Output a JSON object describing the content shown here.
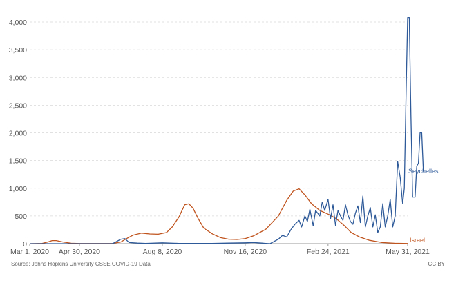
{
  "chart_data": {
    "type": "line",
    "y_ticks": [
      0,
      500,
      1000,
      1500,
      2000,
      2500,
      3000,
      3500,
      4000
    ],
    "y_tick_labels": [
      "0",
      "500",
      "1,000",
      "1,500",
      "2,000",
      "2,500",
      "3,000",
      "3,500",
      "4,000"
    ],
    "ylim": [
      0,
      4100
    ],
    "x_range_days": [
      0,
      456
    ],
    "x_ticks": [
      {
        "day": 0,
        "label": "Mar 1, 2020"
      },
      {
        "day": 60,
        "label": "Apr 30, 2020"
      },
      {
        "day": 160,
        "label": "Aug 8, 2020"
      },
      {
        "day": 260,
        "label": "Nov 16, 2020"
      },
      {
        "day": 360,
        "label": "Feb 24, 2021"
      },
      {
        "day": 456,
        "label": "May 31, 2021"
      }
    ],
    "grid": true,
    "series": [
      {
        "name": "Israel",
        "color": "#c0541e",
        "points": [
          [
            0,
            0
          ],
          [
            15,
            5
          ],
          [
            22,
            30
          ],
          [
            27,
            55
          ],
          [
            32,
            55
          ],
          [
            40,
            30
          ],
          [
            50,
            8
          ],
          [
            60,
            3
          ],
          [
            80,
            3
          ],
          [
            100,
            5
          ],
          [
            110,
            30
          ],
          [
            118,
            100
          ],
          [
            125,
            155
          ],
          [
            135,
            190
          ],
          [
            145,
            175
          ],
          [
            155,
            170
          ],
          [
            165,
            200
          ],
          [
            172,
            300
          ],
          [
            180,
            480
          ],
          [
            187,
            700
          ],
          [
            192,
            720
          ],
          [
            197,
            640
          ],
          [
            203,
            460
          ],
          [
            210,
            280
          ],
          [
            220,
            180
          ],
          [
            230,
            110
          ],
          [
            240,
            80
          ],
          [
            250,
            75
          ],
          [
            260,
            90
          ],
          [
            270,
            140
          ],
          [
            285,
            260
          ],
          [
            300,
            500
          ],
          [
            310,
            780
          ],
          [
            318,
            950
          ],
          [
            325,
            990
          ],
          [
            332,
            880
          ],
          [
            340,
            720
          ],
          [
            350,
            600
          ],
          [
            362,
            520
          ],
          [
            370,
            450
          ],
          [
            380,
            320
          ],
          [
            388,
            200
          ],
          [
            398,
            120
          ],
          [
            410,
            60
          ],
          [
            425,
            20
          ],
          [
            440,
            8
          ],
          [
            456,
            3
          ]
        ]
      },
      {
        "name": "Seychelles",
        "color": "#2e5a99",
        "points": [
          [
            0,
            0
          ],
          [
            100,
            0
          ],
          [
            110,
            80
          ],
          [
            115,
            90
          ],
          [
            120,
            20
          ],
          [
            130,
            10
          ],
          [
            140,
            5
          ],
          [
            160,
            15
          ],
          [
            180,
            5
          ],
          [
            200,
            5
          ],
          [
            220,
            5
          ],
          [
            240,
            10
          ],
          [
            260,
            15
          ],
          [
            270,
            20
          ],
          [
            280,
            10
          ],
          [
            290,
            0
          ],
          [
            300,
            80
          ],
          [
            305,
            150
          ],
          [
            310,
            120
          ],
          [
            315,
            250
          ],
          [
            320,
            350
          ],
          [
            325,
            420
          ],
          [
            328,
            300
          ],
          [
            332,
            500
          ],
          [
            335,
            400
          ],
          [
            338,
            620
          ],
          [
            342,
            320
          ],
          [
            345,
            600
          ],
          [
            350,
            500
          ],
          [
            353,
            750
          ],
          [
            356,
            600
          ],
          [
            360,
            800
          ],
          [
            363,
            450
          ],
          [
            366,
            700
          ],
          [
            369,
            330
          ],
          [
            372,
            600
          ],
          [
            375,
            500
          ],
          [
            378,
            420
          ],
          [
            381,
            700
          ],
          [
            384,
            520
          ],
          [
            387,
            400
          ],
          [
            390,
            350
          ],
          [
            393,
            550
          ],
          [
            396,
            680
          ],
          [
            399,
            380
          ],
          [
            402,
            860
          ],
          [
            405,
            300
          ],
          [
            408,
            500
          ],
          [
            411,
            650
          ],
          [
            414,
            300
          ],
          [
            417,
            520
          ],
          [
            420,
            200
          ],
          [
            423,
            300
          ],
          [
            426,
            720
          ],
          [
            429,
            300
          ],
          [
            432,
            500
          ],
          [
            435,
            800
          ],
          [
            438,
            300
          ],
          [
            441,
            500
          ],
          [
            444,
            1480
          ],
          [
            447,
            1200
          ],
          [
            450,
            720
          ],
          [
            452,
            1000
          ],
          [
            454,
            2600
          ],
          [
            456,
            4080
          ],
          [
            458,
            4080
          ],
          [
            460,
            2300
          ],
          [
            462,
            840
          ],
          [
            465,
            840
          ],
          [
            467,
            1400
          ],
          [
            469,
            1450
          ],
          [
            471,
            2000
          ],
          [
            473,
            2000
          ],
          [
            475,
            1300
          ]
        ]
      }
    ]
  },
  "labels": {
    "series_seychelles": "Seychelles",
    "series_israel": "Israel"
  },
  "footer": {
    "source": "Source: Johns Hopkins University CSSE COVID-19 Data",
    "license": "CC BY"
  }
}
